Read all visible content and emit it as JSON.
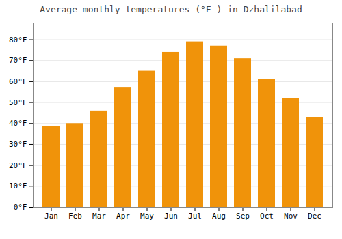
{
  "chart_data": {
    "type": "bar",
    "title": "Average monthly temperatures (°F ) in Dzhalilabad",
    "categories": [
      "Jan",
      "Feb",
      "Mar",
      "Apr",
      "May",
      "Jun",
      "Jul",
      "Aug",
      "Sep",
      "Oct",
      "Nov",
      "Dec"
    ],
    "values": [
      38.5,
      40.0,
      46.0,
      57.0,
      65.0,
      74.0,
      79.0,
      77.0,
      71.0,
      61.0,
      52.0,
      43.0
    ],
    "color": "#F0930A",
    "ylim": [
      0,
      88
    ],
    "yticks": [
      {
        "value": 0,
        "label": "0°F"
      },
      {
        "value": 10,
        "label": "10°F"
      },
      {
        "value": 20,
        "label": "20°F"
      },
      {
        "value": 30,
        "label": "30°F"
      },
      {
        "value": 40,
        "label": "40°F"
      },
      {
        "value": 50,
        "label": "50°F"
      },
      {
        "value": 60,
        "label": "60°F"
      },
      {
        "value": 70,
        "label": "70°F"
      },
      {
        "value": 80,
        "label": "80°F"
      }
    ],
    "grid": true
  }
}
